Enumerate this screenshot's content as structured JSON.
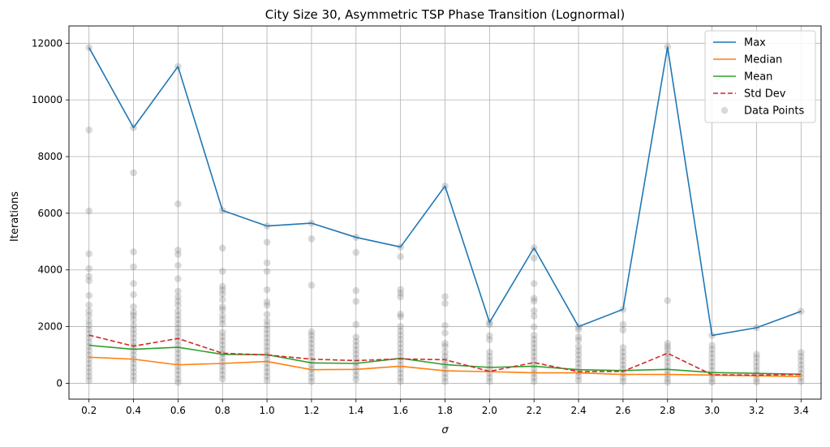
{
  "chart_data": {
    "type": "line",
    "title": "City Size 30, Asymmetric TSP Phase Transition (Lognormal)",
    "xlabel": "σ",
    "ylabel": "Iterations",
    "x": [
      0.2,
      0.4,
      0.6,
      0.8,
      1.0,
      1.2,
      1.4,
      1.6,
      1.8,
      2.0,
      2.2,
      2.4,
      2.6,
      2.8,
      3.0,
      3.2,
      3.4
    ],
    "x_tick_labels": [
      "0.2",
      "0.4",
      "0.6",
      "0.8",
      "1.0",
      "1.2",
      "1.4",
      "1.6",
      "1.8",
      "2.0",
      "2.2",
      "2.4",
      "2.6",
      "2.8",
      "3.0",
      "3.2",
      "3.4"
    ],
    "xlim": [
      0.11,
      3.49
    ],
    "ylim": [
      -560,
      12610
    ],
    "y_ticks": [
      0,
      2000,
      4000,
      6000,
      8000,
      10000,
      12000
    ],
    "y_tick_labels": [
      "0",
      "2000",
      "4000",
      "6000",
      "8000",
      "10000",
      "12000"
    ],
    "grid": true,
    "legend_position": "top-right",
    "series": [
      {
        "name": "Max",
        "color": "#1f77b4",
        "style": "solid",
        "values": [
          11850,
          9020,
          11180,
          6100,
          5550,
          5650,
          5150,
          4810,
          6960,
          2150,
          4780,
          2000,
          2610,
          11870,
          1690,
          1960,
          2540
        ]
      },
      {
        "name": "Median",
        "color": "#ff7f0e",
        "style": "solid",
        "values": [
          920,
          850,
          650,
          700,
          770,
          480,
          490,
          600,
          440,
          410,
          370,
          370,
          310,
          310,
          290,
          260,
          240
        ]
      },
      {
        "name": "Mean",
        "color": "#2ca02c",
        "style": "solid",
        "values": [
          1340,
          1200,
          1270,
          1020,
          1010,
          720,
          700,
          880,
          660,
          560,
          600,
          480,
          450,
          490,
          380,
          350,
          320
        ]
      },
      {
        "name": "Std Dev",
        "color": "#d62728",
        "style": "dashed",
        "values": [
          1700,
          1310,
          1580,
          1060,
          1000,
          850,
          800,
          860,
          830,
          420,
          730,
          410,
          420,
          1060,
          300,
          290,
          310
        ]
      }
    ],
    "scatter": {
      "name": "Data Points",
      "color": "#808080",
      "opacity": 0.3,
      "points": [
        [
          0.2,
          11850
        ],
        [
          0.2,
          8940
        ],
        [
          0.2,
          6080
        ],
        [
          0.2,
          4570
        ],
        [
          0.2,
          4050
        ],
        [
          0.2,
          3780
        ],
        [
          0.2,
          3620
        ],
        [
          0.2,
          3100
        ],
        [
          0.2,
          2760
        ],
        [
          0.2,
          2550
        ],
        [
          0.2,
          2400
        ],
        [
          0.2,
          2200
        ],
        [
          0.2,
          2050
        ],
        [
          0.2,
          1900
        ],
        [
          0.2,
          1750
        ],
        [
          0.2,
          1600
        ],
        [
          0.2,
          1450
        ],
        [
          0.2,
          1300
        ],
        [
          0.2,
          1150
        ],
        [
          0.2,
          1000
        ],
        [
          0.2,
          850
        ],
        [
          0.2,
          700
        ],
        [
          0.2,
          550
        ],
        [
          0.2,
          400
        ],
        [
          0.2,
          250
        ],
        [
          0.2,
          100
        ],
        [
          0.4,
          9020
        ],
        [
          0.4,
          7430
        ],
        [
          0.4,
          4640
        ],
        [
          0.4,
          4110
        ],
        [
          0.4,
          3520
        ],
        [
          0.4,
          3130
        ],
        [
          0.4,
          2700
        ],
        [
          0.4,
          2500
        ],
        [
          0.4,
          2400
        ],
        [
          0.4,
          2250
        ],
        [
          0.4,
          2050
        ],
        [
          0.4,
          1900
        ],
        [
          0.4,
          1750
        ],
        [
          0.4,
          1600
        ],
        [
          0.4,
          1450
        ],
        [
          0.4,
          1300
        ],
        [
          0.4,
          1150
        ],
        [
          0.4,
          1000
        ],
        [
          0.4,
          850
        ],
        [
          0.4,
          700
        ],
        [
          0.4,
          550
        ],
        [
          0.4,
          400
        ],
        [
          0.4,
          250
        ],
        [
          0.4,
          100
        ],
        [
          0.6,
          11180
        ],
        [
          0.6,
          6330
        ],
        [
          0.6,
          4700
        ],
        [
          0.6,
          4550
        ],
        [
          0.6,
          4160
        ],
        [
          0.6,
          3690
        ],
        [
          0.6,
          3250
        ],
        [
          0.6,
          3050
        ],
        [
          0.6,
          2900
        ],
        [
          0.6,
          2750
        ],
        [
          0.6,
          2550
        ],
        [
          0.6,
          2400
        ],
        [
          0.6,
          2250
        ],
        [
          0.6,
          2100
        ],
        [
          0.6,
          1950
        ],
        [
          0.6,
          1800
        ],
        [
          0.6,
          1650
        ],
        [
          0.6,
          1500
        ],
        [
          0.6,
          1350
        ],
        [
          0.6,
          1200
        ],
        [
          0.6,
          1050
        ],
        [
          0.6,
          900
        ],
        [
          0.6,
          750
        ],
        [
          0.6,
          600
        ],
        [
          0.6,
          450
        ],
        [
          0.6,
          300
        ],
        [
          0.6,
          150
        ],
        [
          0.6,
          30
        ],
        [
          0.8,
          6100
        ],
        [
          0.8,
          4770
        ],
        [
          0.8,
          3950
        ],
        [
          0.8,
          3420
        ],
        [
          0.8,
          3300
        ],
        [
          0.8,
          3150
        ],
        [
          0.8,
          2950
        ],
        [
          0.8,
          2700
        ],
        [
          0.8,
          2600
        ],
        [
          0.8,
          2400
        ],
        [
          0.8,
          2250
        ],
        [
          0.8,
          2100
        ],
        [
          0.8,
          1800
        ],
        [
          0.8,
          1650
        ],
        [
          0.8,
          1500
        ],
        [
          0.8,
          1350
        ],
        [
          0.8,
          1200
        ],
        [
          0.8,
          1050
        ],
        [
          0.8,
          900
        ],
        [
          0.8,
          750
        ],
        [
          0.8,
          600
        ],
        [
          0.8,
          450
        ],
        [
          0.8,
          300
        ],
        [
          0.8,
          150
        ],
        [
          1.0,
          5550
        ],
        [
          1.0,
          4980
        ],
        [
          1.0,
          4250
        ],
        [
          1.0,
          3950
        ],
        [
          1.0,
          3300
        ],
        [
          1.0,
          2870
        ],
        [
          1.0,
          2750
        ],
        [
          1.0,
          2430
        ],
        [
          1.0,
          2200
        ],
        [
          1.0,
          2050
        ],
        [
          1.0,
          1900
        ],
        [
          1.0,
          1750
        ],
        [
          1.0,
          1600
        ],
        [
          1.0,
          1450
        ],
        [
          1.0,
          1300
        ],
        [
          1.0,
          1150
        ],
        [
          1.0,
          1000
        ],
        [
          1.0,
          850
        ],
        [
          1.0,
          700
        ],
        [
          1.0,
          550
        ],
        [
          1.0,
          400
        ],
        [
          1.0,
          250
        ],
        [
          1.0,
          100
        ],
        [
          1.2,
          5650
        ],
        [
          1.2,
          5100
        ],
        [
          1.2,
          3460
        ],
        [
          1.2,
          1820
        ],
        [
          1.2,
          1700
        ],
        [
          1.2,
          1550
        ],
        [
          1.2,
          1400
        ],
        [
          1.2,
          1250
        ],
        [
          1.2,
          1100
        ],
        [
          1.2,
          950
        ],
        [
          1.2,
          800
        ],
        [
          1.2,
          650
        ],
        [
          1.2,
          500
        ],
        [
          1.2,
          350
        ],
        [
          1.2,
          200
        ],
        [
          1.2,
          60
        ],
        [
          1.4,
          5150
        ],
        [
          1.4,
          4620
        ],
        [
          1.4,
          3270
        ],
        [
          1.4,
          2890
        ],
        [
          1.4,
          2080
        ],
        [
          1.4,
          1630
        ],
        [
          1.4,
          1480
        ],
        [
          1.4,
          1330
        ],
        [
          1.4,
          1180
        ],
        [
          1.4,
          1030
        ],
        [
          1.4,
          880
        ],
        [
          1.4,
          730
        ],
        [
          1.4,
          580
        ],
        [
          1.4,
          430
        ],
        [
          1.4,
          280
        ],
        [
          1.4,
          130
        ],
        [
          1.6,
          4810
        ],
        [
          1.6,
          4470
        ],
        [
          1.6,
          3310
        ],
        [
          1.6,
          3180
        ],
        [
          1.6,
          3050
        ],
        [
          1.6,
          2440
        ],
        [
          1.6,
          2350
        ],
        [
          1.6,
          2010
        ],
        [
          1.6,
          1850
        ],
        [
          1.6,
          1700
        ],
        [
          1.6,
          1550
        ],
        [
          1.6,
          1400
        ],
        [
          1.6,
          1250
        ],
        [
          1.6,
          1100
        ],
        [
          1.6,
          950
        ],
        [
          1.6,
          800
        ],
        [
          1.6,
          650
        ],
        [
          1.6,
          500
        ],
        [
          1.6,
          350
        ],
        [
          1.6,
          200
        ],
        [
          1.6,
          60
        ],
        [
          1.8,
          6960
        ],
        [
          1.8,
          3060
        ],
        [
          1.8,
          2820
        ],
        [
          1.8,
          2040
        ],
        [
          1.8,
          1780
        ],
        [
          1.8,
          1410
        ],
        [
          1.8,
          1300
        ],
        [
          1.8,
          1100
        ],
        [
          1.8,
          950
        ],
        [
          1.8,
          800
        ],
        [
          1.8,
          650
        ],
        [
          1.8,
          500
        ],
        [
          1.8,
          350
        ],
        [
          1.8,
          200
        ],
        [
          1.8,
          60
        ],
        [
          2.0,
          2150
        ],
        [
          2.0,
          2070
        ],
        [
          2.0,
          1680
        ],
        [
          2.0,
          1540
        ],
        [
          2.0,
          1100
        ],
        [
          2.0,
          950
        ],
        [
          2.0,
          800
        ],
        [
          2.0,
          650
        ],
        [
          2.0,
          500
        ],
        [
          2.0,
          350
        ],
        [
          2.0,
          200
        ],
        [
          2.0,
          60
        ],
        [
          2.2,
          4780
        ],
        [
          2.2,
          4420
        ],
        [
          2.2,
          3520
        ],
        [
          2.2,
          3000
        ],
        [
          2.2,
          2900
        ],
        [
          2.2,
          2560
        ],
        [
          2.2,
          2370
        ],
        [
          2.2,
          1990
        ],
        [
          2.2,
          1700
        ],
        [
          2.2,
          1550
        ],
        [
          2.2,
          1400
        ],
        [
          2.2,
          1250
        ],
        [
          2.2,
          1100
        ],
        [
          2.2,
          950
        ],
        [
          2.2,
          800
        ],
        [
          2.2,
          650
        ],
        [
          2.2,
          500
        ],
        [
          2.2,
          350
        ],
        [
          2.2,
          200
        ],
        [
          2.2,
          60
        ],
        [
          2.4,
          2000
        ],
        [
          2.4,
          1900
        ],
        [
          2.4,
          1640
        ],
        [
          2.4,
          1520
        ],
        [
          2.4,
          1300
        ],
        [
          2.4,
          1150
        ],
        [
          2.4,
          1000
        ],
        [
          2.4,
          850
        ],
        [
          2.4,
          700
        ],
        [
          2.4,
          550
        ],
        [
          2.4,
          400
        ],
        [
          2.4,
          250
        ],
        [
          2.4,
          100
        ],
        [
          2.6,
          2610
        ],
        [
          2.6,
          2080
        ],
        [
          2.6,
          1880
        ],
        [
          2.6,
          1260
        ],
        [
          2.6,
          1100
        ],
        [
          2.6,
          950
        ],
        [
          2.6,
          800
        ],
        [
          2.6,
          650
        ],
        [
          2.6,
          500
        ],
        [
          2.6,
          350
        ],
        [
          2.6,
          200
        ],
        [
          2.6,
          60
        ],
        [
          2.8,
          11870
        ],
        [
          2.8,
          2920
        ],
        [
          2.8,
          1410
        ],
        [
          2.8,
          1300
        ],
        [
          2.8,
          1200
        ],
        [
          2.8,
          1050
        ],
        [
          2.8,
          900
        ],
        [
          2.8,
          750
        ],
        [
          2.8,
          600
        ],
        [
          2.8,
          450
        ],
        [
          2.8,
          300
        ],
        [
          2.8,
          150
        ],
        [
          2.8,
          40
        ],
        [
          3.0,
          1690
        ],
        [
          3.0,
          1340
        ],
        [
          3.0,
          1200
        ],
        [
          3.0,
          1050
        ],
        [
          3.0,
          900
        ],
        [
          3.0,
          750
        ],
        [
          3.0,
          600
        ],
        [
          3.0,
          450
        ],
        [
          3.0,
          300
        ],
        [
          3.0,
          150
        ],
        [
          3.0,
          40
        ],
        [
          3.2,
          1960
        ],
        [
          3.2,
          1020
        ],
        [
          3.2,
          900
        ],
        [
          3.2,
          750
        ],
        [
          3.2,
          600
        ],
        [
          3.2,
          450
        ],
        [
          3.2,
          300
        ],
        [
          3.2,
          150
        ],
        [
          3.2,
          40
        ],
        [
          3.4,
          2540
        ],
        [
          3.4,
          1090
        ],
        [
          3.4,
          950
        ],
        [
          3.4,
          800
        ],
        [
          3.4,
          650
        ],
        [
          3.4,
          500
        ],
        [
          3.4,
          350
        ],
        [
          3.4,
          200
        ],
        [
          3.4,
          60
        ]
      ]
    }
  }
}
